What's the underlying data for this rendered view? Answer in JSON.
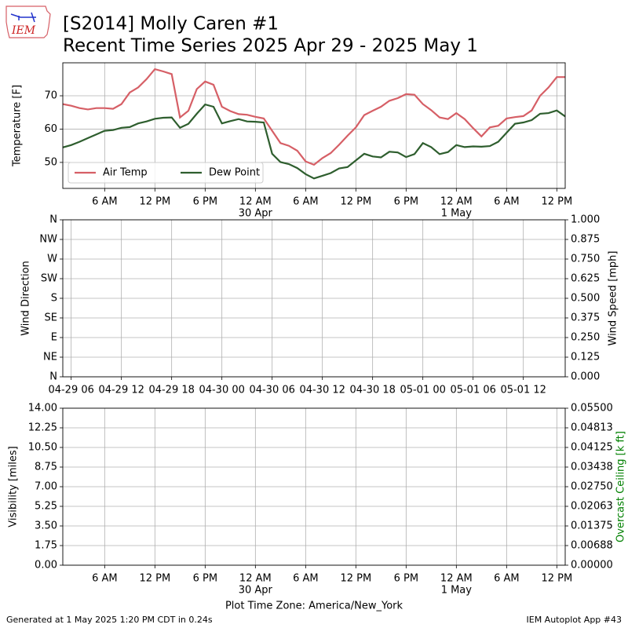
{
  "header": {
    "logo": "IEM",
    "title": [
      "[S2014] Molly Caren #1",
      "Recent Time Series 2025 Apr 29 - 2025 May 1"
    ]
  },
  "footer": {
    "left": "Generated at 1 May 2025 1:20 PM CDT in 0.24s",
    "right": "IEM Autoplot App #43"
  },
  "chart_data": [
    {
      "type": "line",
      "ylabel": "Temperature [F]",
      "grid": true,
      "legend": "lower left",
      "xlim": [
        1,
        61
      ],
      "ylim": [
        42.2,
        79.9
      ],
      "yticks": [
        50,
        60,
        70
      ],
      "xticks": [
        {
          "value": 6,
          "label": "6 AM"
        },
        {
          "value": 12,
          "label": "12 PM"
        },
        {
          "value": 18,
          "label": "6 PM"
        },
        {
          "value": 24,
          "label": "12 AM",
          "sublabel": "30 Apr"
        },
        {
          "value": 30,
          "label": "6 AM"
        },
        {
          "value": 36,
          "label": "12 PM"
        },
        {
          "value": 42,
          "label": "6 PM"
        },
        {
          "value": 48,
          "label": "12 AM",
          "sublabel": "1 May"
        },
        {
          "value": 54,
          "label": "6 AM"
        },
        {
          "value": 60,
          "label": "12 PM"
        }
      ],
      "x": [
        1,
        2,
        3,
        4,
        5,
        6,
        7,
        8,
        9,
        10,
        11,
        12,
        13,
        14,
        15,
        16,
        17,
        18,
        19,
        20,
        21,
        22,
        23,
        24,
        25,
        26,
        27,
        28,
        29,
        30,
        31,
        32,
        33,
        34,
        35,
        36,
        37,
        38,
        39,
        40,
        41,
        42,
        43,
        44,
        45,
        46,
        47,
        48,
        49,
        50,
        51,
        52,
        53,
        54,
        55,
        56,
        57,
        58,
        59,
        60,
        61
      ],
      "series": [
        {
          "name": "Air Temp",
          "color": "#d65f66",
          "values": [
            67.5,
            67.0,
            66.3,
            65.9,
            66.3,
            66.3,
            66.1,
            67.5,
            71.0,
            72.5,
            75.0,
            78.0,
            77.3,
            76.5,
            63.5,
            65.5,
            72.0,
            74.3,
            73.3,
            66.7,
            65.4,
            64.5,
            64.3,
            63.7,
            63.2,
            59.5,
            55.8,
            55.0,
            53.5,
            50.3,
            49.3,
            51.3,
            52.8,
            55.3,
            58.0,
            60.5,
            64.2,
            65.5,
            66.7,
            68.5,
            69.3,
            70.5,
            70.3,
            67.5,
            65.7,
            63.5,
            63.0,
            64.8,
            63.0,
            60.3,
            57.8,
            60.5,
            61.0,
            63.2,
            63.6,
            63.9,
            65.6,
            70.0,
            72.5,
            75.6,
            75.6
          ]
        },
        {
          "name": "Dew Point",
          "color": "#2e5e2e",
          "values": [
            54.5,
            55.2,
            56.2,
            57.3,
            58.4,
            59.5,
            59.7,
            60.4,
            60.6,
            61.7,
            62.3,
            63.1,
            63.4,
            63.5,
            60.4,
            61.6,
            64.6,
            67.4,
            66.7,
            61.7,
            62.4,
            63.0,
            62.3,
            62.2,
            62.0,
            52.6,
            50.1,
            49.5,
            48.3,
            46.5,
            45.2,
            46.0,
            46.8,
            48.2,
            48.6,
            50.6,
            52.6,
            51.8,
            51.5,
            53.2,
            53.0,
            51.6,
            52.5,
            55.8,
            54.6,
            52.5,
            53.1,
            55.2,
            54.6,
            54.8,
            54.7,
            54.9,
            56.2,
            58.9,
            61.6,
            62.0,
            62.7,
            64.6,
            64.8,
            65.6,
            63.8
          ]
        }
      ]
    },
    {
      "type": "line",
      "ylabel": "Wind Direction",
      "y2label": "Wind Speed [mph]",
      "grid": true,
      "xlim": [
        1,
        61
      ],
      "ylim": [
        0,
        360
      ],
      "y2lim": [
        0,
        1
      ],
      "xticks": [
        {
          "value": 2,
          "label": "04-29 06"
        },
        {
          "value": 8,
          "label": "04-29 12"
        },
        {
          "value": 14,
          "label": "04-29 18"
        },
        {
          "value": 20,
          "label": "04-30 00"
        },
        {
          "value": 26,
          "label": "04-30 06"
        },
        {
          "value": 32,
          "label": "04-30 12"
        },
        {
          "value": 38,
          "label": "04-30 18"
        },
        {
          "value": 44,
          "label": "05-01 00"
        },
        {
          "value": 50,
          "label": "05-01 06"
        },
        {
          "value": 56,
          "label": "05-01 12"
        }
      ],
      "yticks": [
        {
          "value": 0,
          "label": "N"
        },
        {
          "value": 45,
          "label": "NE"
        },
        {
          "value": 90,
          "label": "E"
        },
        {
          "value": 135,
          "label": "SE"
        },
        {
          "value": 180,
          "label": "S"
        },
        {
          "value": 225,
          "label": "SW"
        },
        {
          "value": 270,
          "label": "W"
        },
        {
          "value": 315,
          "label": "NW"
        },
        {
          "value": 360,
          "label": "N"
        }
      ],
      "y2ticks": [
        {
          "value": 0,
          "label": "0.000"
        },
        0.125,
        {
          "value": 0.25,
          "label": "0.250"
        },
        0.375,
        {
          "value": 0.5,
          "label": "0.500"
        },
        0.625,
        {
          "value": 0.75,
          "label": "0.750"
        },
        0.875,
        {
          "value": 1,
          "label": "1.000"
        }
      ],
      "series": []
    },
    {
      "type": "line",
      "ylabel": "Visibility [miles]",
      "y2label": "Overcast Ceiling [k ft]",
      "y2label_color": "green",
      "grid": true,
      "xlabel": "Plot Time Zone: America/New_York",
      "xlim": [
        1,
        61
      ],
      "ylim": [
        0,
        14
      ],
      "y2lim": [
        0,
        0.055
      ],
      "xticks": [
        {
          "value": 6,
          "label": "6 AM"
        },
        {
          "value": 12,
          "label": "12 PM"
        },
        {
          "value": 18,
          "label": "6 PM"
        },
        {
          "value": 24,
          "label": "12 AM",
          "sublabel": "30 Apr"
        },
        {
          "value": 30,
          "label": "6 AM"
        },
        {
          "value": 36,
          "label": "12 PM"
        },
        {
          "value": 42,
          "label": "6 PM"
        },
        {
          "value": 48,
          "label": "12 AM",
          "sublabel": "1 May"
        },
        {
          "value": 54,
          "label": "6 AM"
        },
        {
          "value": 60,
          "label": "12 PM"
        }
      ],
      "yticks": [
        {
          "value": 0,
          "label": "0.00"
        },
        1.75,
        {
          "value": 3.5,
          "label": "3.50"
        },
        5.25,
        {
          "value": 7,
          "label": "7.00"
        },
        8.75,
        {
          "value": 10.5,
          "label": "10.50"
        },
        12.25,
        {
          "value": 14,
          "label": "14.00"
        }
      ],
      "y2ticks": [
        {
          "value": 0,
          "label": "0.00000"
        },
        {
          "value": 0.006875,
          "label": "0.00688"
        },
        0.01375,
        {
          "value": 0.020625,
          "label": "0.02063"
        },
        {
          "value": 0.0275,
          "label": "0.02750"
        },
        {
          "value": 0.034375,
          "label": "0.03438"
        },
        0.04125,
        {
          "value": 0.048125,
          "label": "0.04813"
        },
        {
          "value": 0.055,
          "label": "0.05500"
        }
      ],
      "series": []
    }
  ]
}
